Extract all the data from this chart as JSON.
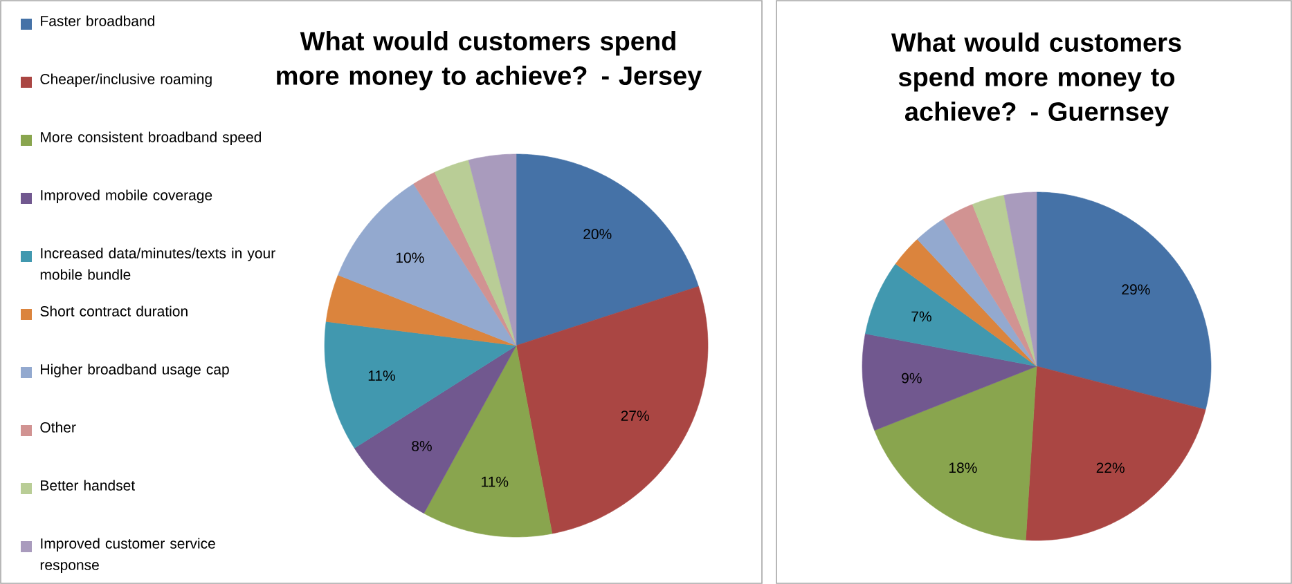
{
  "chart_data": [
    {
      "type": "pie",
      "title": "What would customers spend more money to achieve? - Jersey",
      "legend": "left",
      "categories": [
        "Faster broadband",
        "Cheaper/inclusive roaming",
        "More consistent broadband speed",
        "Improved mobile coverage",
        "Increased data/minutes/texts in your mobile bundle",
        "Short contract duration",
        "Higher broadband usage cap",
        "Other",
        "Better handset",
        "Improved customer service response"
      ],
      "values": [
        20,
        27,
        11,
        8,
        11,
        4,
        10,
        2,
        3,
        4
      ],
      "value_labels": [
        "20%",
        "27%",
        "11%",
        "8%",
        "11%",
        null,
        "10%",
        null,
        null,
        null
      ],
      "colors": [
        "#4572a7",
        "#aa4643",
        "#89a54e",
        "#71588f",
        "#4198af",
        "#db843d",
        "#93a9cf",
        "#d19392",
        "#b9cd96",
        "#a99bbd"
      ]
    },
    {
      "type": "pie",
      "title": "What would customers spend more money to achieve?  - Guernsey",
      "categories": [
        null,
        null,
        null,
        null,
        null,
        null,
        null,
        null,
        null,
        null
      ],
      "values": [
        29,
        22,
        18,
        9,
        7,
        3,
        3,
        3,
        3,
        3
      ],
      "value_labels": [
        "29%",
        "22%",
        "18%",
        "9%",
        "7%",
        null,
        null,
        null,
        null,
        null
      ],
      "colors": [
        "#4572a7",
        "#aa4643",
        "#89a54e",
        "#71588f",
        "#4198af",
        "#db843d",
        "#93a9cf",
        "#d19392",
        "#b9cd96",
        "#a99bbd"
      ]
    }
  ]
}
